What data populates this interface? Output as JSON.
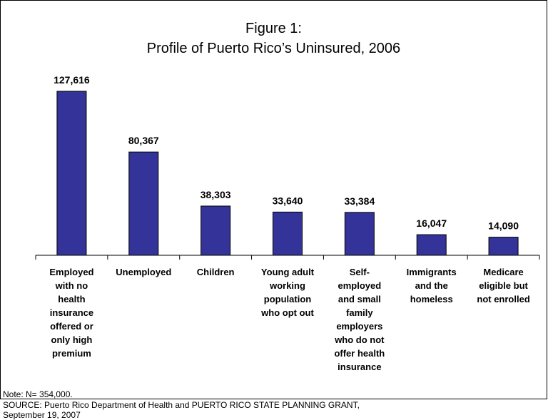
{
  "figure": {
    "title_line1": "Figure 1:",
    "title_line2": "Profile of Puerto Rico’s Uninsured, 2006",
    "note": "Note: N= 354,000.",
    "source_line1": "SOURCE: Puerto Rico Department of Health and PUERTO RICO STATE PLANNING GRANT,",
    "source_line2": "September 19, 2007"
  },
  "chart_data": {
    "type": "bar",
    "title": "Figure 1: Profile of Puerto Rico’s Uninsured, 2006",
    "categories": [
      [
        "Employed",
        "with no",
        "health",
        "insurance",
        "offered or",
        "only high",
        "premium"
      ],
      [
        "Unemployed"
      ],
      [
        "Children"
      ],
      [
        "Young adult",
        "working",
        "population",
        "who opt out"
      ],
      [
        "Self-",
        "employed",
        "and small",
        "family",
        "employers",
        "who do not",
        "offer health",
        "insurance"
      ],
      [
        "Immigrants",
        "and the",
        "homeless"
      ],
      [
        "Medicare",
        "eligible but",
        "not enrolled"
      ]
    ],
    "values": [
      127616,
      80367,
      38303,
      33640,
      33384,
      16047,
      14090
    ],
    "data_labels": [
      "127,616",
      "80,367",
      "38,303",
      "33,640",
      "33,384",
      "16,047",
      "14,090"
    ],
    "ylim": [
      0,
      130000
    ],
    "bar_color": "#333399",
    "xlabel": "",
    "ylabel": "",
    "legend": "none",
    "grid": false
  }
}
